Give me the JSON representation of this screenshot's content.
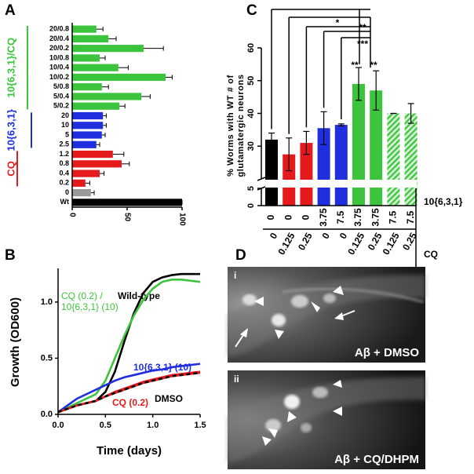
{
  "chart_data": [
    {
      "type": "bar",
      "orientation": "horizontal",
      "label": "A",
      "categories": [
        "20/0.8",
        "20/0.4",
        "20/0.2",
        "10/0.8",
        "10/0.4",
        "10/0.2",
        "5/0.8",
        "5/0.4",
        "5/0.2",
        "20",
        "10",
        "5",
        "2.5",
        "1.2",
        "0.8",
        "0.4",
        "0.2",
        "0",
        "Wt"
      ],
      "values": [
        22,
        33,
        65,
        25,
        42,
        85,
        27,
        63,
        43,
        28,
        28,
        27,
        22,
        37,
        45,
        25,
        12,
        17,
        100
      ],
      "errors": [
        6,
        7,
        18,
        5,
        9,
        6,
        6,
        8,
        5,
        3,
        3,
        3,
        3,
        10,
        7,
        4,
        4,
        3,
        0
      ],
      "colors": [
        "#3cc43c",
        "#3cc43c",
        "#3cc43c",
        "#3cc43c",
        "#3cc43c",
        "#3cc43c",
        "#3cc43c",
        "#3cc43c",
        "#3cc43c",
        "#1f2fe0",
        "#1f2fe0",
        "#1f2fe0",
        "#1f2fe0",
        "#e41a1c",
        "#e41a1c",
        "#e41a1c",
        "#e41a1c",
        "#999999",
        "#000000"
      ],
      "groups": [
        {
          "name": "10{6,3,1}/CQ",
          "color": "#3cc43c"
        },
        {
          "name": "10{6,3,1}",
          "color": "#1f2fe0"
        },
        {
          "name": "CQ",
          "color": "#e41a1c"
        }
      ],
      "xlim": [
        0,
        100
      ],
      "xticks": [
        0,
        50,
        100
      ]
    },
    {
      "type": "line",
      "label": "B",
      "x": [
        0,
        0.1,
        0.2,
        0.3,
        0.4,
        0.5,
        0.6,
        0.7,
        0.8,
        0.9,
        1.0,
        1.1,
        1.2,
        1.3,
        1.4,
        1.5
      ],
      "series": [
        {
          "name": "Wild-type",
          "color": "#000000",
          "values": [
            0.02,
            0.05,
            0.08,
            0.1,
            0.12,
            0.2,
            0.38,
            0.65,
            0.9,
            1.08,
            1.18,
            1.22,
            1.24,
            1.25,
            1.25,
            1.25
          ]
        },
        {
          "name": "CQ (0.2) / 10{6,3,1} (10)",
          "color": "#3cc43c",
          "values": [
            0.02,
            0.06,
            0.1,
            0.14,
            0.18,
            0.3,
            0.5,
            0.7,
            0.88,
            1.02,
            1.12,
            1.18,
            1.2,
            1.2,
            1.19,
            1.18
          ]
        },
        {
          "name": "10{6,3,1} (10)",
          "color": "#1f2fe0",
          "values": [
            0.02,
            0.08,
            0.14,
            0.18,
            0.22,
            0.26,
            0.3,
            0.33,
            0.35,
            0.37,
            0.39,
            0.4,
            0.42,
            0.43,
            0.44,
            0.45
          ]
        },
        {
          "name": "CQ (0.2)",
          "color": "#e41a1c",
          "values": [
            0.02,
            0.05,
            0.08,
            0.1,
            0.12,
            0.16,
            0.2,
            0.23,
            0.26,
            0.29,
            0.31,
            0.33,
            0.35,
            0.36,
            0.37,
            0.38
          ]
        },
        {
          "name": "DMSO",
          "color": "#e41a1c",
          "dash_color": "#000000",
          "values": [
            0.02,
            0.05,
            0.08,
            0.1,
            0.12,
            0.16,
            0.19,
            0.22,
            0.25,
            0.28,
            0.3,
            0.32,
            0.34,
            0.35,
            0.36,
            0.37
          ]
        }
      ],
      "xlim": [
        0,
        1.5
      ],
      "xticks": [
        {
          "value": 0,
          "label": "0.0"
        },
        0.5,
        {
          "value": 1,
          "label": "1.0"
        },
        1.5
      ],
      "ylim": [
        0,
        1.3
      ],
      "yticks": [
        {
          "value": 0,
          "label": "0.0"
        },
        0.5,
        {
          "value": 1,
          "label": "1.0"
        }
      ],
      "xlabel": "Time (days)",
      "ylabel": "Growth (OD600)"
    },
    {
      "type": "bar",
      "label": "C",
      "values": [
        32,
        27.5,
        31,
        35.5,
        36.5,
        49,
        47,
        40,
        40
      ],
      "errors": [
        2,
        5,
        3.5,
        5,
        0.3,
        5,
        6,
        0,
        3
      ],
      "colors": [
        "#000000",
        "#e41a1c",
        "#e41a1c",
        "#1f2fe0",
        "#1f2fe0",
        "#3cc43c",
        "#3cc43c",
        "#3cc43c",
        "#3cc43c"
      ],
      "hatched": [
        false,
        false,
        false,
        false,
        false,
        false,
        false,
        true,
        true
      ],
      "ylim": [
        0,
        60
      ],
      "axis_break": [
        5,
        20
      ],
      "yticks": [
        0,
        5,
        30,
        40,
        50,
        60
      ],
      "ylabel": [
        "% Worms with WT # of",
        "glutamatergic neurons"
      ],
      "conditions": [
        {
          "name": "10{6,3,1}",
          "values": [
            0,
            0,
            0,
            3.75,
            7.5,
            3.75,
            3.75,
            7.5,
            7.5
          ]
        },
        {
          "name": "CQ",
          "values": [
            0,
            0.125,
            0.25,
            0,
            0,
            0.125,
            0.25,
            0.125,
            0.25
          ]
        }
      ],
      "annotations": [
        "*",
        "**",
        "***",
        "**",
        "**"
      ]
    }
  ],
  "images": {
    "label": "D",
    "panels": [
      {
        "label": "i",
        "caption": "Aβ + DMSO"
      },
      {
        "label": "ii",
        "caption": "Aβ + CQ/DHPM"
      }
    ]
  }
}
